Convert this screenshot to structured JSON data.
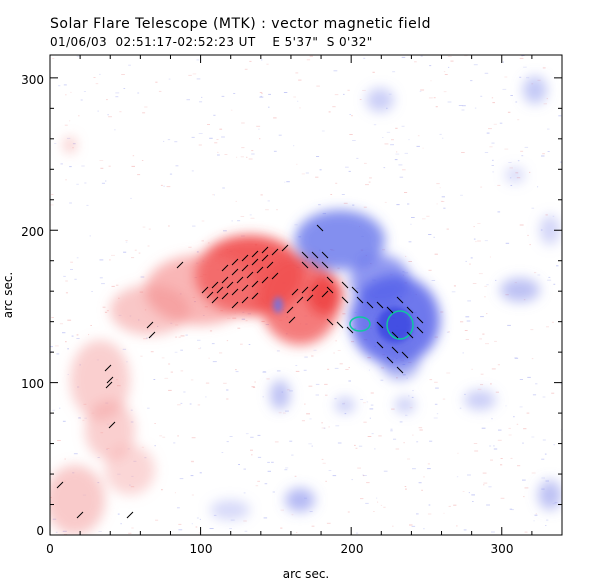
{
  "header": {
    "title": "Solar Flare Telescope (MTK) : vector magnetic field",
    "subtitle": "01/06/03  02:51:17-02:52:23 UT    E 5'37\"  S 0'32\""
  },
  "axes": {
    "xlabel": "arc sec.",
    "ylabel": "arc sec.",
    "x_ticks": [
      "0",
      "100",
      "200",
      "300"
    ],
    "y_ticks": [
      "0",
      "100",
      "200",
      "300"
    ],
    "xlim": [
      0,
      340
    ],
    "ylim": [
      0,
      315
    ]
  },
  "colors": {
    "positive_field": "#f04040",
    "negative_field": "#4a55e8",
    "contour": "#10c8a0",
    "vector": "#000000"
  }
}
